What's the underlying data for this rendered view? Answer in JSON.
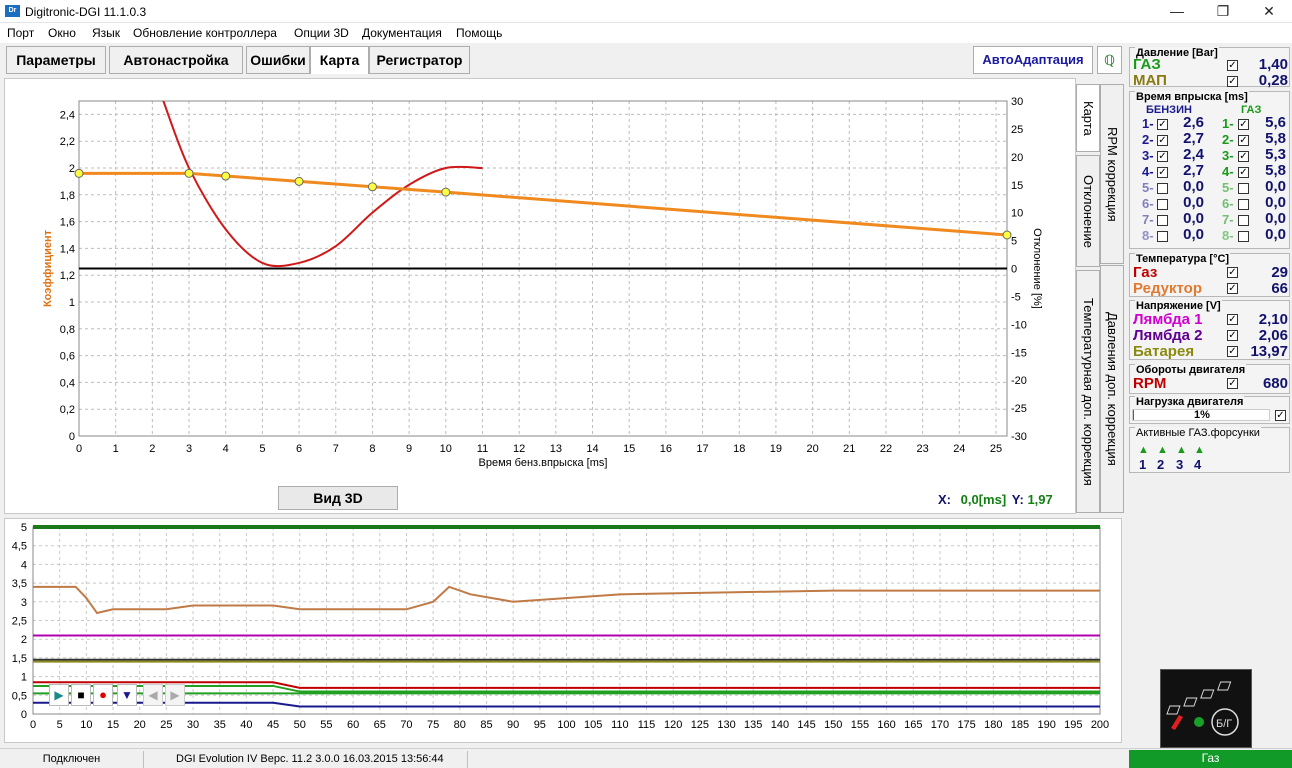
{
  "window": {
    "title": "Digitronic-DGI  11.1.0.3",
    "icon": "Dr"
  },
  "menu": [
    "Порт",
    "Окно",
    "Язык",
    "Обновление контроллера",
    "Опции 3D",
    "Документация",
    "Помощь"
  ],
  "tabs": [
    "Параметры",
    "Автонастройка",
    "Ошибки",
    "Карта",
    "Регистратор"
  ],
  "active_tab": "Карта",
  "autoadapt_label": "АвтоАдаптация",
  "side_tabs": [
    "Карта",
    "RPM коррекция",
    "Отклонение",
    "Давления доп. коррекция",
    "Температурная доп. коррекция"
  ],
  "map_chart": {
    "ylabel_left": "Коэффициент",
    "ylabel_right": "Отклонение [%]",
    "xlabel": "Время бенз.впрыска [ms]",
    "y_left_ticks": [
      "2,4",
      "2,2",
      "2",
      "1,8",
      "1,6",
      "1,4",
      "1,2",
      "1",
      "0,8",
      "0,6",
      "0,4",
      "0,2",
      "0"
    ],
    "y_right_ticks": [
      "30",
      "25",
      "20",
      "15",
      "10",
      "5",
      "0",
      "-5",
      "-10",
      "-15",
      "-20",
      "-25",
      "-30"
    ],
    "x_ticks": [
      "0",
      "1",
      "2",
      "3",
      "4",
      "5",
      "6",
      "7",
      "8",
      "9",
      "10",
      "11",
      "12",
      "13",
      "14",
      "15",
      "16",
      "17",
      "18",
      "19",
      "20",
      "21",
      "22",
      "23",
      "24",
      "25"
    ],
    "left_range": [
      0,
      2.5
    ],
    "right_range": [
      -30,
      30
    ],
    "x_range": [
      0,
      25.3
    ],
    "coef_points": [
      [
        0,
        1.96
      ],
      [
        3,
        1.96
      ],
      [
        4,
        1.94
      ],
      [
        6,
        1.9
      ],
      [
        8,
        1.86
      ],
      [
        10,
        1.82
      ],
      [
        25.3,
        1.5
      ]
    ],
    "knots": [
      [
        0,
        1.96
      ],
      [
        3,
        1.96
      ],
      [
        4,
        1.94
      ],
      [
        6,
        1.9
      ],
      [
        8,
        1.86
      ],
      [
        10,
        1.82
      ],
      [
        25.3,
        1.5
      ]
    ],
    "deviation_points": [
      [
        2.3,
        30
      ],
      [
        3,
        18
      ],
      [
        4,
        7
      ],
      [
        5,
        1
      ],
      [
        6,
        1
      ],
      [
        7,
        4
      ],
      [
        8,
        10
      ],
      [
        9,
        15
      ],
      [
        10,
        18
      ],
      [
        11,
        18
      ]
    ],
    "zero_line_right": 0
  },
  "view3d_label": "Вид 3D",
  "readout": {
    "x_label": "X:",
    "x_value": "0,0[ms]",
    "y_label": "Y:",
    "y_value": "1,97"
  },
  "log_chart": {
    "y_ticks": [
      "5",
      "4,5",
      "4",
      "3,5",
      "3",
      "2,5",
      "2",
      "1,5",
      "1",
      "0,5",
      "0"
    ],
    "x_ticks": [
      "0",
      "5",
      "10",
      "15",
      "20",
      "25",
      "30",
      "35",
      "40",
      "45",
      "50",
      "55",
      "60",
      "65",
      "70",
      "75",
      "80",
      "85",
      "90",
      "95",
      "100",
      "105",
      "110",
      "115",
      "120",
      "125",
      "130",
      "135",
      "140",
      "145",
      "150",
      "155",
      "160",
      "165",
      "170",
      "175",
      "180",
      "185",
      "190",
      "195",
      "200"
    ],
    "y_range": [
      0,
      5
    ],
    "x_range": [
      0,
      200
    ],
    "series": [
      {
        "color": "#c07a45",
        "values": [
          [
            0,
            3.4
          ],
          [
            8,
            3.4
          ],
          [
            10,
            3.1
          ],
          [
            12,
            2.7
          ],
          [
            15,
            2.8
          ],
          [
            25,
            2.8
          ],
          [
            30,
            2.9
          ],
          [
            45,
            2.9
          ],
          [
            50,
            2.8
          ],
          [
            70,
            2.8
          ],
          [
            75,
            3.0
          ],
          [
            78,
            3.4
          ],
          [
            82,
            3.2
          ],
          [
            90,
            3.0
          ],
          [
            110,
            3.2
          ],
          [
            150,
            3.3
          ],
          [
            200,
            3.3
          ]
        ]
      },
      {
        "color": "#b000b0",
        "values": [
          [
            0,
            2.1
          ],
          [
            200,
            2.1
          ]
        ]
      },
      {
        "color": "#333333",
        "values": [
          [
            0,
            1.45
          ],
          [
            200,
            1.45
          ]
        ]
      },
      {
        "color": "#8b8b1e",
        "values": [
          [
            0,
            1.4
          ],
          [
            200,
            1.4
          ]
        ]
      },
      {
        "color": "#c00000",
        "values": [
          [
            0,
            0.85
          ],
          [
            45,
            0.85
          ],
          [
            50,
            0.7
          ],
          [
            200,
            0.7
          ]
        ]
      },
      {
        "color": "#20a020",
        "values": [
          [
            0,
            0.75
          ],
          [
            45,
            0.75
          ],
          [
            50,
            0.6
          ],
          [
            200,
            0.6
          ]
        ]
      },
      {
        "color": "#20a020",
        "values": [
          [
            0,
            0.55
          ],
          [
            200,
            0.55
          ]
        ]
      },
      {
        "color": "#1a1a90",
        "values": [
          [
            0,
            0.3
          ],
          [
            45,
            0.3
          ],
          [
            50,
            0.2
          ],
          [
            200,
            0.2
          ]
        ]
      }
    ]
  },
  "status": {
    "connection": "Подключен",
    "device": "DGI Evolution IV   Верс. 11.2  3.0.0    16.03.2015 13:56:44",
    "mode": "Газ"
  },
  "right_panel": {
    "pressure": {
      "title": "Давление [Bar]",
      "items": [
        {
          "label": "ГАЗ",
          "value": "1,40",
          "color": "#1a9a1a",
          "checked": true
        },
        {
          "label": "МАП",
          "value": "0,28",
          "color": "#8a7a10",
          "checked": true
        }
      ]
    },
    "injection": {
      "title": "Время впрыска [ms]",
      "petrol_header": "БЕНЗИН",
      "gas_header": "ГАЗ",
      "rows": [
        {
          "pl": "1-",
          "pv": "2,6",
          "gl": "1-",
          "gv": "5,6",
          "on": true
        },
        {
          "pl": "2-",
          "pv": "2,7",
          "gl": "2-",
          "gv": "5,8",
          "on": true
        },
        {
          "pl": "3-",
          "pv": "2,4",
          "gl": "3-",
          "gv": "5,3",
          "on": true
        },
        {
          "pl": "4-",
          "pv": "2,7",
          "gl": "4-",
          "gv": "5,8",
          "on": true
        },
        {
          "pl": "5-",
          "pv": "0,0",
          "gl": "5-",
          "gv": "0,0",
          "on": false
        },
        {
          "pl": "6-",
          "pv": "0,0",
          "gl": "6-",
          "gv": "0,0",
          "on": false
        },
        {
          "pl": "7-",
          "pv": "0,0",
          "gl": "7-",
          "gv": "0,0",
          "on": false
        },
        {
          "pl": "8-",
          "pv": "0,0",
          "gl": "8-",
          "gv": "0,0",
          "on": false
        }
      ]
    },
    "temperature": {
      "title": "Температура [°C]",
      "items": [
        {
          "label": "Газ",
          "value": "29",
          "color": "#c00000"
        },
        {
          "label": "Редуктор",
          "value": "66",
          "color": "#e07a30"
        }
      ]
    },
    "voltage": {
      "title": "Напряжение [V]",
      "items": [
        {
          "label": "Лямбда 1",
          "value": "2,10",
          "color": "#d000d0"
        },
        {
          "label": "Лямбда 2",
          "value": "2,06",
          "color": "#600090"
        },
        {
          "label": "Батарея",
          "value": "13,97",
          "color": "#8a8a10"
        }
      ]
    },
    "rpm": {
      "title": "Обороты двигателя",
      "label": "RPM",
      "value": "680",
      "color": "#c00000"
    },
    "load": {
      "title": "Нагрузка двигателя",
      "value": "1%",
      "fraction": 0.01
    },
    "injectors": {
      "title": "Активные ГАЗ.форсунки",
      "items": [
        "1",
        "2",
        "3",
        "4"
      ]
    }
  }
}
